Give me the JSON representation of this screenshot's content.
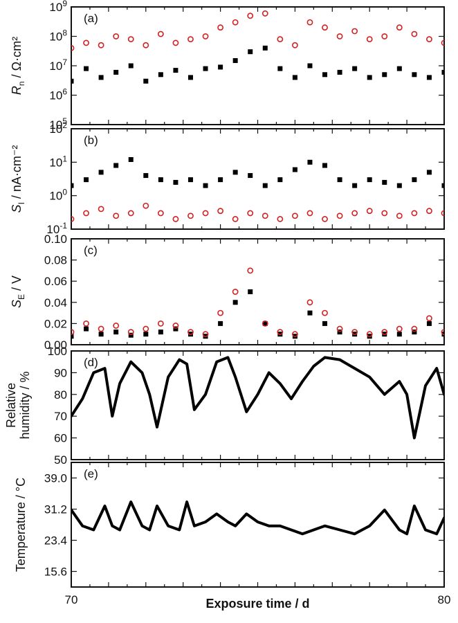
{
  "figure": {
    "x_axis": {
      "label": "Exposure time / d",
      "min": 70,
      "max": 80,
      "tick_labels": [
        "70",
        "80"
      ]
    },
    "series_colors": {
      "black_series": "#000000",
      "red_series": "#d42020"
    }
  },
  "chart_data": [
    {
      "panel": "a",
      "letter": "(a)",
      "type": "scatter",
      "ylabel_main": "R",
      "ylabel_sub": "n",
      "ylabel_rest": " / Ω·cm²",
      "yscale": "log",
      "ylim": [
        100000.0,
        1000000000.0
      ],
      "y_tick_labels": [
        {
          "base": "10",
          "exp": "5",
          "value": 100000.0
        },
        {
          "base": "10",
          "exp": "6",
          "value": 1000000.0
        },
        {
          "base": "10",
          "exp": "7",
          "value": 10000000.0
        },
        {
          "base": "10",
          "exp": "8",
          "value": 100000000.0
        },
        {
          "base": "10",
          "exp": "9",
          "value": 1000000000.0
        }
      ],
      "series": [
        {
          "name": "black",
          "marker": "filled-square",
          "color": "#000000",
          "x": [
            70.0,
            70.4,
            70.8,
            71.2,
            71.6,
            72.0,
            72.4,
            72.8,
            73.2,
            73.6,
            74.0,
            74.4,
            74.8,
            75.2,
            75.6,
            76.0,
            76.4,
            76.8,
            77.2,
            77.6,
            78.0,
            78.4,
            78.8,
            79.2,
            79.6,
            80.0
          ],
          "y": [
            3000000.0,
            8000000.0,
            4000000.0,
            6000000.0,
            10000000.0,
            3000000.0,
            5000000.0,
            7000000.0,
            4000000.0,
            8000000.0,
            9000000.0,
            15000000.0,
            30000000.0,
            40000000.0,
            8000000.0,
            4000000.0,
            10000000.0,
            5000000.0,
            6000000.0,
            8000000.0,
            4000000.0,
            5000000.0,
            8000000.0,
            5000000.0,
            4000000.0,
            6000000.0
          ]
        },
        {
          "name": "red",
          "marker": "open-circle",
          "color": "#d42020",
          "x": [
            70.0,
            70.4,
            70.8,
            71.2,
            71.6,
            72.0,
            72.4,
            72.8,
            73.2,
            73.6,
            74.0,
            74.4,
            74.8,
            75.2,
            75.6,
            76.0,
            76.4,
            76.8,
            77.2,
            77.6,
            78.0,
            78.4,
            78.8,
            79.2,
            79.6,
            80.0
          ],
          "y": [
            40000000.0,
            60000000.0,
            50000000.0,
            100000000.0,
            80000000.0,
            50000000.0,
            120000000.0,
            60000000.0,
            80000000.0,
            100000000.0,
            200000000.0,
            300000000.0,
            500000000.0,
            600000000.0,
            80000000.0,
            50000000.0,
            300000000.0,
            200000000.0,
            100000000.0,
            150000000.0,
            80000000.0,
            100000000.0,
            200000000.0,
            120000000.0,
            80000000.0,
            60000000.0
          ]
        }
      ]
    },
    {
      "panel": "b",
      "letter": "(b)",
      "type": "scatter",
      "ylabel_main": "S",
      "ylabel_sub": "I",
      "ylabel_rest": " / nA·cm⁻²",
      "yscale": "log",
      "ylim": [
        0.1,
        100
      ],
      "y_tick_labels": [
        {
          "base": "10",
          "exp": "-1",
          "value": 0.1
        },
        {
          "base": "10",
          "exp": "0",
          "value": 1
        },
        {
          "base": "10",
          "exp": "1",
          "value": 10
        },
        {
          "base": "10",
          "exp": "2",
          "value": 100
        }
      ],
      "series": [
        {
          "name": "black",
          "marker": "filled-square",
          "color": "#000000",
          "x": [
            70.0,
            70.4,
            70.8,
            71.2,
            71.6,
            72.0,
            72.4,
            72.8,
            73.2,
            73.6,
            74.0,
            74.4,
            74.8,
            75.2,
            75.6,
            76.0,
            76.4,
            76.8,
            77.2,
            77.6,
            78.0,
            78.4,
            78.8,
            79.2,
            79.6,
            80.0
          ],
          "y": [
            2,
            3,
            5,
            8,
            12,
            4,
            3,
            2.5,
            3,
            2,
            3,
            5,
            4,
            2,
            3,
            6,
            10,
            8,
            3,
            2,
            3,
            2.5,
            2,
            3,
            5,
            2
          ]
        },
        {
          "name": "red",
          "marker": "open-circle",
          "color": "#d42020",
          "x": [
            70.0,
            70.4,
            70.8,
            71.2,
            71.6,
            72.0,
            72.4,
            72.8,
            73.2,
            73.6,
            74.0,
            74.4,
            74.8,
            75.2,
            75.6,
            76.0,
            76.4,
            76.8,
            77.2,
            77.6,
            78.0,
            78.4,
            78.8,
            79.2,
            79.6,
            80.0
          ],
          "y": [
            0.2,
            0.3,
            0.4,
            0.25,
            0.3,
            0.5,
            0.3,
            0.2,
            0.25,
            0.3,
            0.35,
            0.2,
            0.3,
            0.25,
            0.2,
            0.25,
            0.3,
            0.2,
            0.25,
            0.3,
            0.35,
            0.3,
            0.25,
            0.3,
            0.35,
            0.3
          ]
        }
      ]
    },
    {
      "panel": "c",
      "letter": "(c)",
      "type": "scatter",
      "ylabel_main": "S",
      "ylabel_sub": "E",
      "ylabel_rest": " / V",
      "yscale": "linear",
      "ylim": [
        0.0,
        0.1
      ],
      "y_tick_labels": [
        {
          "label": "0.00",
          "value": 0.0
        },
        {
          "label": "0.02",
          "value": 0.02
        },
        {
          "label": "0.04",
          "value": 0.04
        },
        {
          "label": "0.06",
          "value": 0.06
        },
        {
          "label": "0.08",
          "value": 0.08
        },
        {
          "label": "0.10",
          "value": 0.1
        }
      ],
      "series": [
        {
          "name": "black",
          "marker": "filled-square",
          "color": "#000000",
          "x": [
            70.0,
            70.4,
            70.8,
            71.2,
            71.6,
            72.0,
            72.4,
            72.8,
            73.2,
            73.6,
            74.0,
            74.4,
            74.8,
            75.2,
            75.6,
            76.0,
            76.4,
            76.8,
            77.2,
            77.6,
            78.0,
            78.4,
            78.8,
            79.2,
            79.6,
            80.0
          ],
          "y": [
            0.008,
            0.015,
            0.01,
            0.012,
            0.009,
            0.01,
            0.012,
            0.015,
            0.01,
            0.008,
            0.02,
            0.04,
            0.05,
            0.02,
            0.01,
            0.008,
            0.03,
            0.02,
            0.012,
            0.01,
            0.008,
            0.01,
            0.01,
            0.012,
            0.02,
            0.01
          ]
        },
        {
          "name": "red",
          "marker": "open-circle",
          "color": "#d42020",
          "x": [
            70.0,
            70.4,
            70.8,
            71.2,
            71.6,
            72.0,
            72.4,
            72.8,
            73.2,
            73.6,
            74.0,
            74.4,
            74.8,
            75.2,
            75.6,
            76.0,
            76.4,
            76.8,
            77.2,
            77.6,
            78.0,
            78.4,
            78.8,
            79.2,
            79.6,
            80.0
          ],
          "y": [
            0.012,
            0.02,
            0.015,
            0.018,
            0.012,
            0.015,
            0.02,
            0.018,
            0.012,
            0.01,
            0.03,
            0.05,
            0.07,
            0.02,
            0.012,
            0.01,
            0.04,
            0.03,
            0.015,
            0.012,
            0.01,
            0.012,
            0.015,
            0.015,
            0.025,
            0.012
          ]
        }
      ]
    },
    {
      "panel": "d",
      "letter": "(d)",
      "type": "line",
      "ylabel_line1": "Relative",
      "ylabel_line2": "humidity / %",
      "yscale": "linear",
      "ylim": [
        50,
        100
      ],
      "y_tick_labels": [
        {
          "label": "50",
          "value": 50
        },
        {
          "label": "60",
          "value": 60
        },
        {
          "label": "70",
          "value": 70
        },
        {
          "label": "80",
          "value": 80
        },
        {
          "label": "90",
          "value": 90
        },
        {
          "label": "100",
          "value": 100
        }
      ],
      "series": [
        {
          "name": "relative humidity",
          "color": "#000000",
          "x": [
            70.0,
            70.3,
            70.6,
            70.9,
            71.1,
            71.3,
            71.6,
            71.9,
            72.1,
            72.3,
            72.6,
            72.9,
            73.1,
            73.3,
            73.6,
            73.9,
            74.2,
            74.4,
            74.7,
            75.0,
            75.3,
            75.6,
            75.9,
            76.2,
            76.5,
            76.8,
            77.2,
            77.6,
            78.0,
            78.4,
            78.8,
            79.0,
            79.2,
            79.5,
            79.8,
            80.0
          ],
          "y": [
            70,
            78,
            90,
            92,
            70,
            85,
            95,
            90,
            80,
            65,
            88,
            96,
            94,
            73,
            80,
            95,
            97,
            88,
            72,
            80,
            90,
            85,
            78,
            86,
            93,
            97,
            96,
            92,
            88,
            80,
            86,
            80,
            60,
            84,
            92,
            80
          ]
        }
      ]
    },
    {
      "panel": "e",
      "letter": "(e)",
      "type": "line",
      "ylabel_line1": "Temperature / °C",
      "yscale": "linear",
      "ylim": [
        11.7,
        42.9
      ],
      "y_tick_labels": [
        {
          "label": "15.6",
          "value": 15.6
        },
        {
          "label": "23.4",
          "value": 23.4
        },
        {
          "label": "31.2",
          "value": 31.2
        },
        {
          "label": "39.0",
          "value": 39.0
        }
      ],
      "series": [
        {
          "name": "temperature",
          "color": "#000000",
          "x": [
            70.0,
            70.3,
            70.6,
            70.9,
            71.1,
            71.3,
            71.6,
            71.9,
            72.1,
            72.3,
            72.6,
            72.9,
            73.1,
            73.3,
            73.6,
            73.9,
            74.2,
            74.4,
            74.7,
            75.0,
            75.3,
            75.6,
            75.9,
            76.2,
            76.5,
            76.8,
            77.2,
            77.6,
            78.0,
            78.4,
            78.8,
            79.0,
            79.2,
            79.5,
            79.8,
            80.0
          ],
          "y": [
            31,
            27,
            26,
            32,
            27,
            26,
            33,
            27,
            26,
            32,
            27,
            26,
            33,
            27,
            28,
            30,
            28,
            27,
            30,
            28,
            27,
            27,
            26,
            25,
            26,
            27,
            26,
            25,
            27,
            31,
            26,
            25,
            32,
            26,
            25,
            29
          ]
        }
      ]
    }
  ]
}
